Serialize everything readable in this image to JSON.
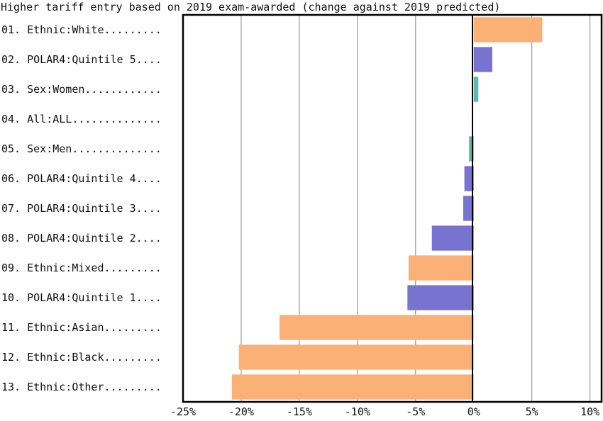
{
  "chart_data": {
    "type": "bar",
    "orientation": "horizontal",
    "title": "Higher tariff entry based on 2019 exam-awarded (change against 2019 predicted)",
    "xlabel": "",
    "ylabel": "",
    "xlim": [
      -25,
      11
    ],
    "x_ticks": [
      -25,
      -20,
      -15,
      -10,
      -5,
      0,
      5,
      10
    ],
    "x_tick_labels": [
      "-25%",
      "-20%",
      "-15%",
      "-10%",
      "-5%",
      "0%",
      "5%",
      "10%"
    ],
    "grid": "vertical",
    "legend": "none",
    "category_colors": {
      "Ethnic": "#fbb076",
      "POLAR4": "#7873d1",
      "Sex": "#5ab8b3",
      "All": "#999999"
    },
    "bars": [
      {
        "label": "01. Ethnic:White.........",
        "group": "Ethnic",
        "value": 5.9
      },
      {
        "label": "02. POLAR4:Quintile 5....",
        "group": "POLAR4",
        "value": 1.6
      },
      {
        "label": "03. Sex:Women............",
        "group": "Sex",
        "value": 0.4
      },
      {
        "label": "04. All:ALL..............",
        "group": "All",
        "value": 0.0
      },
      {
        "label": "05. Sex:Men..............",
        "group": "Sex",
        "value": -0.4
      },
      {
        "label": "06. POLAR4:Quintile 4....",
        "group": "POLAR4",
        "value": -0.8
      },
      {
        "label": "07. POLAR4:Quintile 3....",
        "group": "POLAR4",
        "value": -0.9
      },
      {
        "label": "08. POLAR4:Quintile 2....",
        "group": "POLAR4",
        "value": -3.6
      },
      {
        "label": "09. Ethnic:Mixed.........",
        "group": "Ethnic",
        "value": -5.6
      },
      {
        "label": "10. POLAR4:Quintile 1....",
        "group": "POLAR4",
        "value": -5.7
      },
      {
        "label": "11. Ethnic:Asian.........",
        "group": "Ethnic",
        "value": -16.7
      },
      {
        "label": "12. Ethnic:Black.........",
        "group": "Ethnic",
        "value": -20.2
      },
      {
        "label": "13. Ethnic:Other.........",
        "group": "Ethnic",
        "value": -20.8
      }
    ]
  }
}
